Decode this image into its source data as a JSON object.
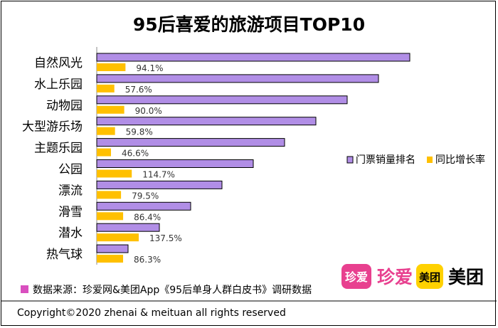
{
  "chart_data": {
    "type": "bar",
    "title": "95后喜爱的旅游项目TOP10",
    "categories": [
      "自然风光",
      "水上乐园",
      "动物园",
      "大型游乐场",
      "主题乐园",
      "公园",
      "漂流",
      "滑雪",
      "潜水",
      "热气球"
    ],
    "series": [
      {
        "name": "门票销量排名",
        "values": [
          10,
          9,
          8,
          7,
          6,
          5,
          4,
          3,
          2,
          1
        ],
        "color": "#b18ee6"
      },
      {
        "name": "同比增长率",
        "values": [
          94.1,
          57.6,
          90.0,
          59.8,
          46.6,
          114.7,
          79.5,
          86.4,
          137.5,
          86.3
        ],
        "labels": [
          "94.1%",
          "57.6%",
          "90.0%",
          "59.8%",
          "46.6%",
          "114.7%",
          "79.5%",
          "86.4%",
          "137.5%",
          "86.3%"
        ],
        "color": "#ffc000"
      }
    ],
    "xlabel": "",
    "ylabel": "",
    "legend": "right"
  },
  "source_marker_color": "#d94fbf",
  "source": "数据来源：珍爱网&美团App《95后单身人群白皮书》调研数据",
  "logos": {
    "zhenai_badge": "珍爱",
    "zhenai_text": "珍爱",
    "meituan_badge": "美团",
    "meituan_text": "美团",
    "zhenai_color": "#e8408f",
    "meituan_color": "#ffd100"
  },
  "copyright": "Copyright©2020 zhenai & meituan all rights reserved"
}
